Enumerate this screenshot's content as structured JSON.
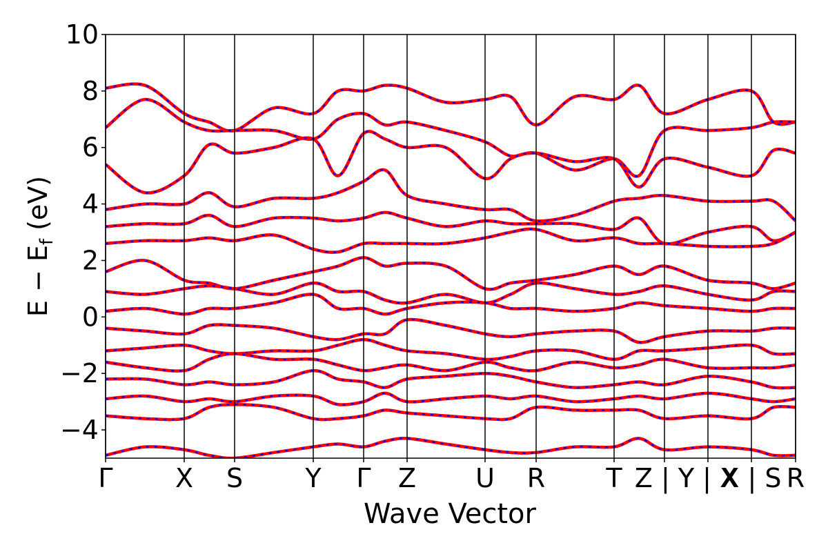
{
  "chart_data": {
    "type": "band-structure",
    "xlabel": "Wave Vector",
    "ylabel": {
      "main": "E − E",
      "sub": "f",
      "unit": " (eV)"
    },
    "line_color": "#ff0000",
    "dash_color": "#0000ff",
    "xlim": [
      0,
      1000
    ],
    "xticks": [
      {
        "value": 0,
        "label": "Γ"
      },
      {
        "value": 114,
        "label": "X"
      },
      {
        "value": 187,
        "label": "S"
      },
      {
        "value": 301,
        "label": "Y"
      },
      {
        "value": 374,
        "label": "Γ"
      },
      {
        "value": 437,
        "label": "Z"
      },
      {
        "value": 550,
        "label": "U"
      },
      {
        "value": 624,
        "label": "R"
      },
      {
        "value": 737,
        "label": "T"
      },
      {
        "value": 810,
        "label": "Z | Y"
      },
      {
        "value": 873,
        "label": "Y | X"
      },
      {
        "value": 936,
        "label": "X | S"
      },
      {
        "value": 1000,
        "label": "R"
      }
    ],
    "ylim": [
      -5,
      10
    ],
    "yticks": [
      {
        "value": -4,
        "label": "−4"
      },
      {
        "value": -2,
        "label": "−2"
      },
      0,
      2,
      4,
      6,
      8,
      10
    ],
    "x": [
      0,
      57,
      114,
      150,
      187,
      244,
      301,
      337,
      374,
      405,
      437,
      493,
      550,
      587,
      624,
      680,
      737,
      773,
      810,
      873,
      936,
      968,
      1000
    ],
    "series": [
      {
        "values": [
          8.1,
          8.2,
          7.2,
          6.9,
          6.6,
          7.4,
          7.2,
          8.0,
          8.0,
          8.2,
          8.1,
          7.6,
          7.7,
          7.8,
          6.8,
          7.8,
          7.7,
          8.2,
          7.2,
          7.7,
          8.0,
          6.9,
          6.9
        ]
      },
      {
        "values": [
          6.7,
          7.7,
          6.9,
          6.6,
          6.6,
          6.6,
          6.3,
          7.0,
          7.2,
          6.8,
          6.9,
          6.6,
          6.2,
          5.7,
          5.8,
          5.2,
          5.6,
          5.0,
          6.6,
          6.6,
          6.7,
          6.9,
          6.9
        ]
      },
      {
        "values": [
          5.4,
          4.4,
          5.0,
          6.1,
          5.8,
          6.0,
          6.3,
          5.0,
          6.5,
          6.3,
          6.0,
          6.0,
          4.9,
          5.6,
          5.8,
          5.5,
          5.6,
          4.6,
          5.6,
          5.3,
          5.0,
          5.9,
          5.8
        ]
      },
      {
        "values": [
          3.8,
          4.0,
          4.0,
          4.4,
          3.9,
          4.2,
          4.2,
          4.4,
          4.8,
          5.2,
          4.3,
          4.0,
          3.8,
          3.8,
          3.4,
          3.6,
          4.1,
          4.2,
          4.3,
          4.1,
          4.1,
          4.1,
          3.4
        ]
      },
      {
        "values": [
          3.2,
          3.3,
          3.3,
          3.6,
          3.2,
          3.5,
          3.5,
          3.4,
          3.5,
          3.7,
          3.5,
          3.2,
          3.4,
          3.3,
          3.3,
          3.3,
          3.1,
          3.5,
          2.6,
          3.0,
          3.2,
          2.7,
          3.0
        ]
      },
      {
        "values": [
          2.6,
          2.7,
          2.7,
          2.8,
          2.7,
          2.9,
          2.4,
          2.3,
          2.6,
          2.6,
          2.6,
          2.6,
          2.8,
          3.0,
          3.1,
          2.7,
          2.8,
          2.6,
          2.6,
          2.5,
          2.5,
          2.6,
          3.0
        ]
      },
      {
        "values": [
          1.6,
          2.0,
          1.3,
          1.2,
          1.0,
          1.3,
          1.6,
          1.8,
          2.1,
          1.8,
          1.9,
          1.8,
          1.0,
          1.2,
          1.3,
          1.5,
          1.8,
          1.5,
          1.8,
          1.3,
          1.2,
          1.0,
          1.2
        ]
      },
      {
        "values": [
          0.9,
          0.8,
          1.0,
          1.1,
          1.0,
          0.8,
          1.2,
          0.9,
          0.9,
          0.6,
          0.5,
          0.8,
          0.5,
          0.8,
          1.2,
          1.0,
          0.8,
          0.9,
          1.1,
          0.8,
          0.6,
          0.9,
          0.9
        ]
      },
      {
        "values": [
          0.2,
          0.3,
          0.1,
          0.3,
          0.3,
          0.5,
          0.8,
          0.3,
          0.3,
          0.1,
          0.3,
          0.5,
          0.5,
          0.3,
          0.3,
          0.2,
          0.3,
          0.5,
          0.4,
          0.3,
          0.2,
          0.3,
          0.3
        ]
      },
      {
        "values": [
          -0.4,
          -0.5,
          -0.6,
          -0.3,
          -0.3,
          -0.4,
          -0.7,
          -0.8,
          -0.6,
          -0.6,
          -0.1,
          -0.3,
          -0.6,
          -0.7,
          -0.6,
          -0.5,
          -0.5,
          -0.9,
          -0.7,
          -0.5,
          -0.5,
          -0.4,
          -0.4
        ]
      },
      {
        "values": [
          -1.2,
          -1.1,
          -1.0,
          -1.2,
          -1.3,
          -1.2,
          -1.2,
          -1.0,
          -0.8,
          -1.0,
          -1.2,
          -1.3,
          -1.5,
          -1.4,
          -1.2,
          -1.2,
          -1.5,
          -1.2,
          -1.2,
          -1.1,
          -1.0,
          -1.3,
          -1.3
        ]
      },
      {
        "values": [
          -1.6,
          -1.8,
          -1.9,
          -1.5,
          -1.3,
          -1.5,
          -1.5,
          -1.7,
          -1.9,
          -1.8,
          -1.7,
          -1.9,
          -1.6,
          -1.8,
          -1.9,
          -1.6,
          -1.8,
          -1.7,
          -1.5,
          -1.8,
          -1.8,
          -1.8,
          -1.7
        ]
      },
      {
        "values": [
          -2.2,
          -2.2,
          -2.4,
          -2.3,
          -2.4,
          -2.3,
          -1.9,
          -2.2,
          -2.3,
          -2.5,
          -2.2,
          -2.1,
          -2.0,
          -2.1,
          -2.3,
          -2.5,
          -2.4,
          -2.3,
          -2.4,
          -2.1,
          -2.3,
          -2.5,
          -2.5
        ]
      },
      {
        "values": [
          -2.9,
          -2.8,
          -3.0,
          -2.9,
          -3.0,
          -2.8,
          -2.8,
          -3.1,
          -3.0,
          -2.7,
          -3.0,
          -2.9,
          -2.8,
          -2.9,
          -2.8,
          -3.0,
          -2.9,
          -2.8,
          -2.9,
          -2.7,
          -2.9,
          -3.0,
          -2.9
        ]
      },
      {
        "values": [
          -3.5,
          -3.6,
          -3.6,
          -3.2,
          -3.1,
          -3.2,
          -3.6,
          -3.6,
          -3.5,
          -3.3,
          -3.4,
          -3.5,
          -3.6,
          -3.6,
          -3.2,
          -3.3,
          -3.3,
          -3.3,
          -3.6,
          -3.5,
          -3.6,
          -3.2,
          -3.2
        ]
      },
      {
        "values": [
          -4.9,
          -4.6,
          -4.7,
          -4.9,
          -5.0,
          -4.8,
          -4.6,
          -4.5,
          -4.6,
          -4.4,
          -4.3,
          -4.5,
          -4.7,
          -4.8,
          -4.8,
          -4.6,
          -4.6,
          -4.3,
          -4.7,
          -4.6,
          -4.7,
          -4.9,
          -4.9
        ]
      }
    ]
  }
}
